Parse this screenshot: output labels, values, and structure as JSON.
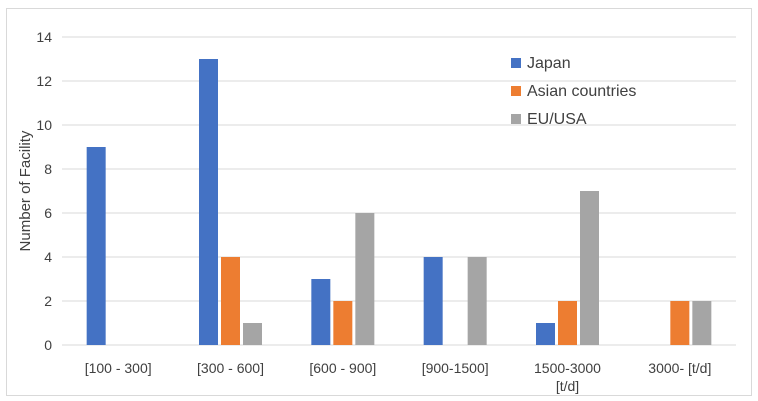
{
  "chart_data": {
    "type": "bar",
    "title": "",
    "xlabel": "",
    "ylabel": "Number of Facility",
    "ylim": [
      0,
      14
    ],
    "yticks": [
      0,
      2,
      4,
      6,
      8,
      10,
      12,
      14
    ],
    "grid": true,
    "legend_position": "top-right",
    "categories": [
      [
        "[100 - 300]"
      ],
      [
        "[300 - 600]"
      ],
      [
        "[600 - 900]"
      ],
      [
        "[900-1500]"
      ],
      [
        "1500-3000",
        "[t/d]"
      ],
      [
        "3000- [t/d]"
      ]
    ],
    "series": [
      {
        "name": "Japan",
        "color": "#4472c4",
        "values": [
          9,
          13,
          3,
          4,
          1,
          0
        ]
      },
      {
        "name": "Asian countries",
        "color": "#ed7d31",
        "values": [
          0,
          4,
          2,
          0,
          2,
          2
        ]
      },
      {
        "name": "EU/USA",
        "color": "#a5a5a5",
        "values": [
          0,
          1,
          6,
          4,
          7,
          2
        ]
      }
    ]
  }
}
